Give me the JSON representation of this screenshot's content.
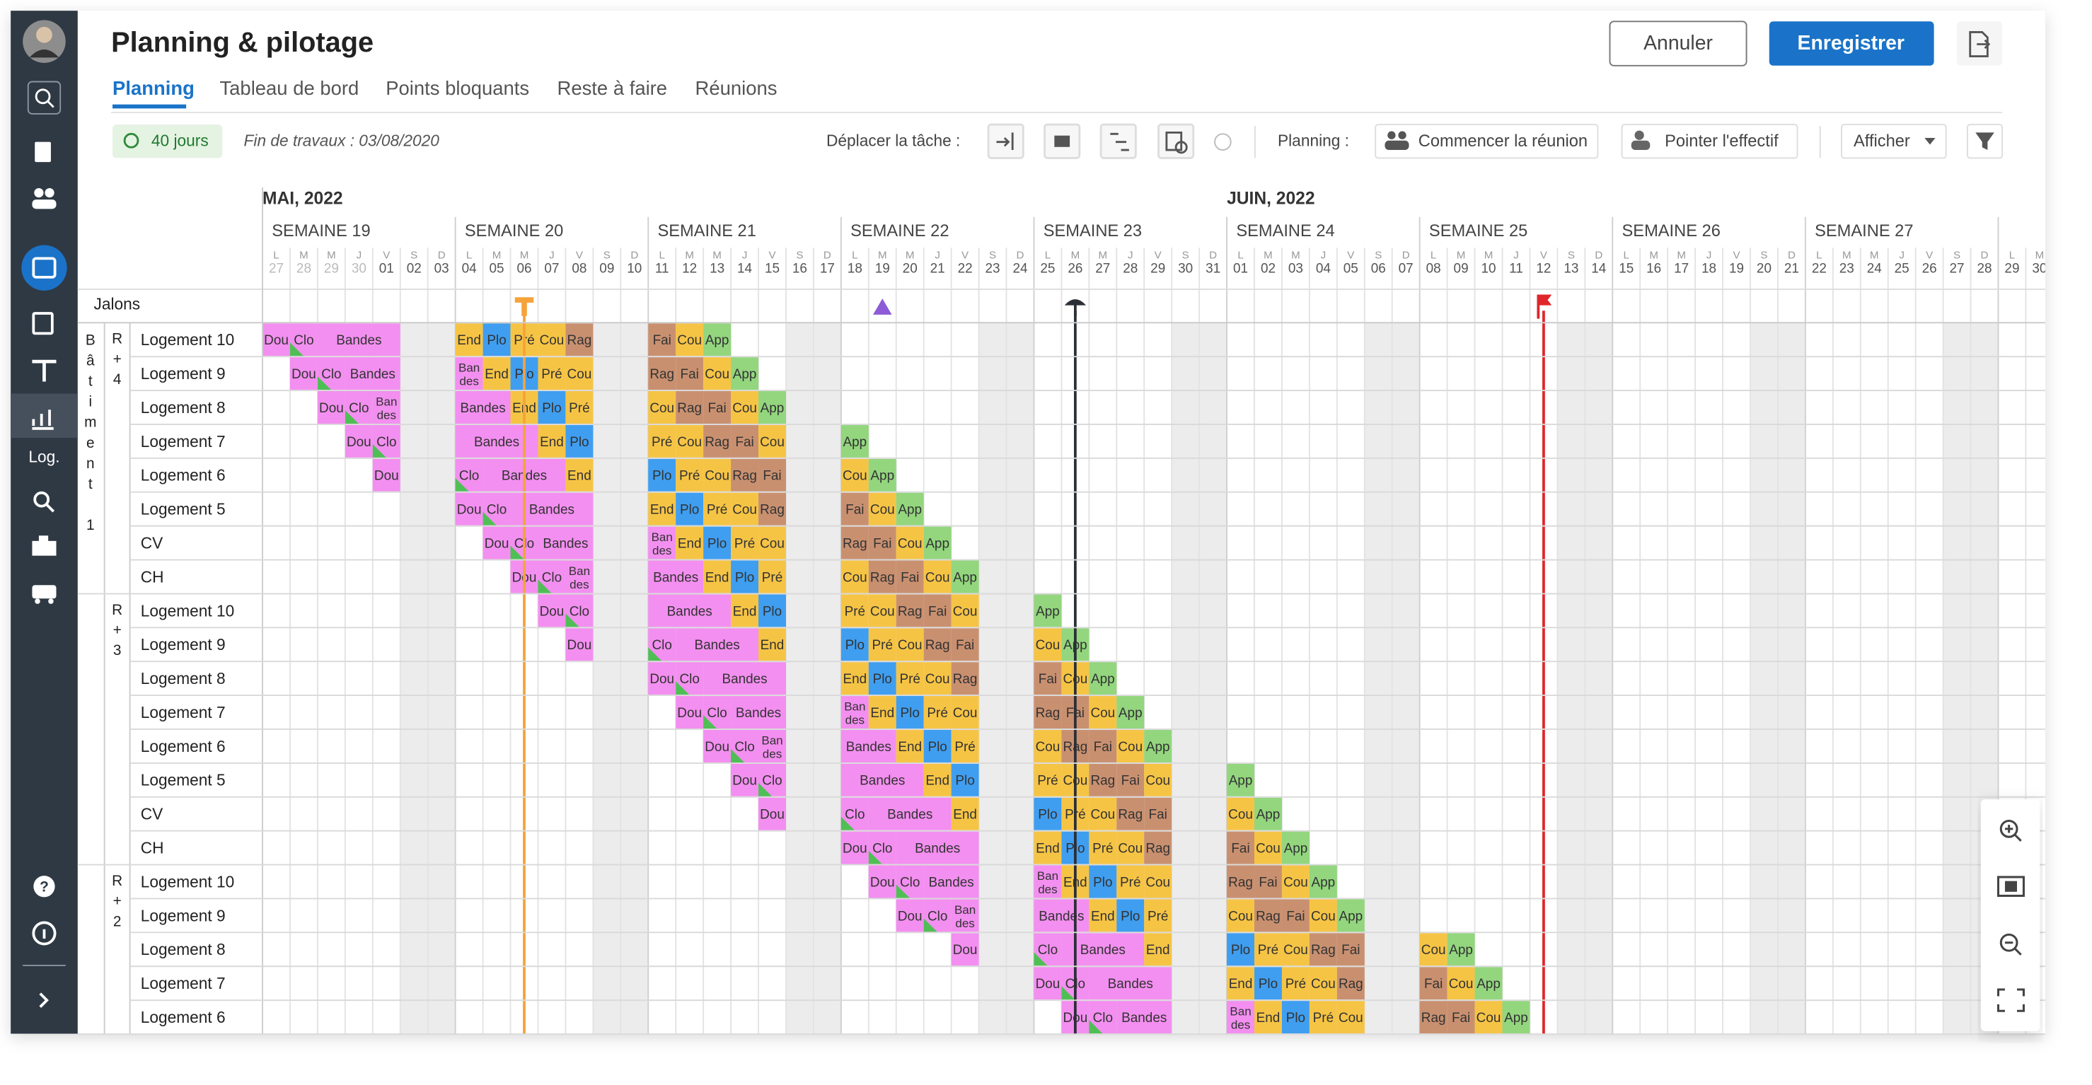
{
  "header": {
    "title": "Planning & pilotage",
    "tabs": [
      "Planning",
      "Tableau de bord",
      "Points bloquants",
      "Reste à faire",
      "Réunions"
    ]
  },
  "buttons": {
    "cancel": "Annuler",
    "save": "Enregistrer"
  },
  "toolbar": {
    "duration": "40 jours",
    "end_date": "Fin de travaux : 03/08/2020",
    "move_task": "Déplacer la tâche :",
    "planning": "Planning :",
    "start_meeting": "Commencer la réunion",
    "staff": "Pointer l'effectif",
    "display": "Afficher"
  },
  "sidebar": {
    "log": "Log."
  },
  "calendar": {
    "months": [
      "MAI, 2022",
      "JUIN, 2022"
    ],
    "weeks": [
      "SEMAINE 19",
      "SEMAINE 20",
      "SEMAINE 21",
      "SEMAINE 22",
      "SEMAINE 23",
      "SEMAINE 24",
      "SEMAINE 25",
      "SEMAINE 26",
      "SEMAINE 27"
    ],
    "weekdays": [
      "L",
      "M",
      "M",
      "J",
      "V",
      "S",
      "D"
    ],
    "days": [
      "27",
      "28",
      "29",
      "30",
      "01",
      "02",
      "03",
      "04",
      "05",
      "06",
      "07",
      "08",
      "09",
      "10",
      "11",
      "12",
      "13",
      "14",
      "15",
      "16",
      "17",
      "18",
      "19",
      "20",
      "21",
      "22",
      "23",
      "24",
      "25",
      "26",
      "27",
      "28",
      "29",
      "30",
      "31",
      "01",
      "02",
      "03",
      "04",
      "05",
      "06",
      "07",
      "08",
      "09",
      "10",
      "11",
      "12",
      "13",
      "14",
      "15",
      "16",
      "17",
      "18",
      "19",
      "20",
      "21",
      "22",
      "23",
      "24",
      "25",
      "26",
      "27",
      "28",
      "29",
      "30"
    ]
  },
  "milestones_label": "Jalons",
  "colors": {
    "Dou": "#f38ff0",
    "Clo": "#f38ff0",
    "Bandes": "#f38ff0",
    "End": "#f6c445",
    "Pré": "#f6c445",
    "Cou": "#f6c445",
    "Plo": "#3f9ef0",
    "Rag": "#c99070",
    "Fai": "#c99070",
    "App": "#93d67e"
  },
  "building": "Bâtiment 1",
  "floors": [
    {
      "label": "R+4",
      "rows": [
        {
          "name": "Logement 10",
          "cells": [
            "Dou",
            "Clo",
            "Bandes",
            "Bandes",
            "Bandes",
            null,
            null,
            "End",
            "Plo",
            "Pré",
            "Cou",
            "Rag",
            null,
            null,
            "Fai",
            "Cou",
            "App"
          ]
        },
        {
          "name": "Logement 9",
          "cells": [
            null,
            "Dou",
            "Clo",
            "Bandes",
            "Bandes",
            null,
            null,
            "Bandes",
            "End",
            "Plo",
            "Pré",
            "Cou",
            null,
            null,
            "Rag",
            "Fai",
            "Cou",
            "App"
          ]
        },
        {
          "name": "Logement 8",
          "cells": [
            null,
            null,
            "Dou",
            "Clo",
            "Bandes",
            null,
            null,
            "Bandes",
            "Bandes",
            "End",
            "Plo",
            "Pré",
            null,
            null,
            "Cou",
            "Rag",
            "Fai",
            "Cou",
            "App"
          ]
        },
        {
          "name": "Logement 7",
          "cells": [
            null,
            null,
            null,
            "Dou",
            "Clo",
            null,
            null,
            "Bandes",
            "Bandes",
            "Bandes",
            "End",
            "Plo",
            null,
            null,
            "Pré",
            "Cou",
            "Rag",
            "Fai",
            "Cou",
            null,
            null,
            "App"
          ]
        },
        {
          "name": "Logement 6",
          "cells": [
            null,
            null,
            null,
            null,
            "Dou",
            null,
            null,
            "Clo",
            "Bandes",
            "Bandes",
            "Bandes",
            "End",
            null,
            null,
            "Plo",
            "Pré",
            "Cou",
            "Rag",
            "Fai",
            null,
            null,
            "Cou",
            "App"
          ]
        },
        {
          "name": "Logement 5",
          "cells": [
            null,
            null,
            null,
            null,
            null,
            null,
            null,
            "Dou",
            "Clo",
            "Bandes",
            "Bandes",
            "Bandes",
            null,
            null,
            "End",
            "Plo",
            "Pré",
            "Cou",
            "Rag",
            null,
            null,
            "Fai",
            "Cou",
            "App"
          ]
        },
        {
          "name": "CV",
          "cells": [
            null,
            null,
            null,
            null,
            null,
            null,
            null,
            null,
            "Dou",
            "Clo",
            "Bandes",
            "Bandes",
            null,
            null,
            "Bandes",
            "End",
            "Plo",
            "Pré",
            "Cou",
            null,
            null,
            "Rag",
            "Fai",
            "Cou",
            "App"
          ]
        },
        {
          "name": "CH",
          "cells": [
            null,
            null,
            null,
            null,
            null,
            null,
            null,
            null,
            null,
            "Dou",
            "Clo",
            "Bandes",
            null,
            null,
            "Bandes",
            "Bandes",
            "End",
            "Plo",
            "Pré",
            null,
            null,
            "Cou",
            "Rag",
            "Fai",
            "Cou",
            "App"
          ]
        }
      ]
    },
    {
      "label": "R+3",
      "rows": [
        {
          "name": "Logement 10",
          "cells": [
            null,
            null,
            null,
            null,
            null,
            null,
            null,
            null,
            null,
            null,
            "Dou",
            "Clo",
            null,
            null,
            "Bandes",
            "Bandes",
            "Bandes",
            "End",
            "Plo",
            null,
            null,
            "Pré",
            "Cou",
            "Rag",
            "Fai",
            "Cou",
            null,
            null,
            "App"
          ]
        },
        {
          "name": "Logement 9",
          "cells": [
            null,
            null,
            null,
            null,
            null,
            null,
            null,
            null,
            null,
            null,
            null,
            "Dou",
            null,
            null,
            "Clo",
            "Bandes",
            "Bandes",
            "Bandes",
            "End",
            null,
            null,
            "Plo",
            "Pré",
            "Cou",
            "Rag",
            "Fai",
            null,
            null,
            "Cou",
            "App"
          ]
        },
        {
          "name": "Logement 8",
          "cells": [
            null,
            null,
            null,
            null,
            null,
            null,
            null,
            null,
            null,
            null,
            null,
            null,
            null,
            null,
            "Dou",
            "Clo",
            "Bandes",
            "Bandes",
            "Bandes",
            null,
            null,
            "End",
            "Plo",
            "Pré",
            "Cou",
            "Rag",
            null,
            null,
            "Fai",
            "Cou",
            "App"
          ]
        },
        {
          "name": "Logement 7",
          "cells": [
            null,
            null,
            null,
            null,
            null,
            null,
            null,
            null,
            null,
            null,
            null,
            null,
            null,
            null,
            null,
            "Dou",
            "Clo",
            "Bandes",
            "Bandes",
            null,
            null,
            "Bandes",
            "End",
            "Plo",
            "Pré",
            "Cou",
            null,
            null,
            "Rag",
            "Fai",
            "Cou",
            "App"
          ]
        },
        {
          "name": "Logement 6",
          "cells": [
            null,
            null,
            null,
            null,
            null,
            null,
            null,
            null,
            null,
            null,
            null,
            null,
            null,
            null,
            null,
            null,
            "Dou",
            "Clo",
            "Bandes",
            null,
            null,
            "Bandes",
            "Bandes",
            "End",
            "Plo",
            "Pré",
            null,
            null,
            "Cou",
            "Rag",
            "Fai",
            "Cou",
            "App"
          ]
        },
        {
          "name": "Logement 5",
          "cells": [
            null,
            null,
            null,
            null,
            null,
            null,
            null,
            null,
            null,
            null,
            null,
            null,
            null,
            null,
            null,
            null,
            null,
            "Dou",
            "Clo",
            null,
            null,
            "Bandes",
            "Bandes",
            "Bandes",
            "End",
            "Plo",
            null,
            null,
            "Pré",
            "Cou",
            "Rag",
            "Fai",
            "Cou",
            null,
            null,
            "App"
          ]
        },
        {
          "name": "CV",
          "cells": [
            null,
            null,
            null,
            null,
            null,
            null,
            null,
            null,
            null,
            null,
            null,
            null,
            null,
            null,
            null,
            null,
            null,
            null,
            "Dou",
            null,
            null,
            "Clo",
            "Bandes",
            "Bandes",
            "Bandes",
            "End",
            null,
            null,
            "Plo",
            "Pré",
            "Cou",
            "Rag",
            "Fai",
            null,
            null,
            "Cou",
            "App"
          ]
        },
        {
          "name": "CH",
          "cells": [
            null,
            null,
            null,
            null,
            null,
            null,
            null,
            null,
            null,
            null,
            null,
            null,
            null,
            null,
            null,
            null,
            null,
            null,
            null,
            null,
            null,
            "Dou",
            "Clo",
            "Bandes",
            "Bandes",
            "Bandes",
            null,
            null,
            "End",
            "Plo",
            "Pré",
            "Cou",
            "Rag",
            null,
            null,
            "Fai",
            "Cou",
            "App"
          ]
        }
      ]
    },
    {
      "label": "R+2",
      "rows": [
        {
          "name": "Logement 10",
          "cells": [
            null,
            null,
            null,
            null,
            null,
            null,
            null,
            null,
            null,
            null,
            null,
            null,
            null,
            null,
            null,
            null,
            null,
            null,
            null,
            null,
            null,
            null,
            "Dou",
            "Clo",
            "Bandes",
            "Bandes",
            null,
            null,
            "Bandes",
            "End",
            "Plo",
            "Pré",
            "Cou",
            null,
            null,
            "Rag",
            "Fai",
            "Cou",
            "App"
          ]
        },
        {
          "name": "Logement 9",
          "cells": [
            null,
            null,
            null,
            null,
            null,
            null,
            null,
            null,
            null,
            null,
            null,
            null,
            null,
            null,
            null,
            null,
            null,
            null,
            null,
            null,
            null,
            null,
            null,
            "Dou",
            "Clo",
            "Bandes",
            null,
            null,
            "Bandes",
            "Bandes",
            "End",
            "Plo",
            "Pré",
            null,
            null,
            "Cou",
            "Rag",
            "Fai",
            "Cou",
            "App"
          ]
        },
        {
          "name": "Logement 8",
          "cells": [
            null,
            null,
            null,
            null,
            null,
            null,
            null,
            null,
            null,
            null,
            null,
            null,
            null,
            null,
            null,
            null,
            null,
            null,
            null,
            null,
            null,
            null,
            null,
            null,
            null,
            "Dou",
            null,
            null,
            "Clo",
            "Bandes",
            "Bandes",
            "Bandes",
            "End",
            null,
            null,
            "Plo",
            "Pré",
            "Cou",
            "Rag",
            "Fai",
            null,
            null,
            "Cou",
            "App"
          ]
        },
        {
          "name": "Logement 7",
          "cells": [
            null,
            null,
            null,
            null,
            null,
            null,
            null,
            null,
            null,
            null,
            null,
            null,
            null,
            null,
            null,
            null,
            null,
            null,
            null,
            null,
            null,
            null,
            null,
            null,
            null,
            null,
            null,
            null,
            "Dou",
            "Clo",
            "Bandes",
            "Bandes",
            "Bandes",
            null,
            null,
            "End",
            "Plo",
            "Pré",
            "Cou",
            "Rag",
            null,
            null,
            "Fai",
            "Cou",
            "App"
          ]
        },
        {
          "name": "Logement 6",
          "cells": [
            null,
            null,
            null,
            null,
            null,
            null,
            null,
            null,
            null,
            null,
            null,
            null,
            null,
            null,
            null,
            null,
            null,
            null,
            null,
            null,
            null,
            null,
            null,
            null,
            null,
            null,
            null,
            null,
            null,
            "Dou",
            "Clo",
            "Bandes",
            "Bandes",
            null,
            null,
            "Bandes",
            "End",
            "Plo",
            "Pré",
            "Cou",
            null,
            null,
            "Rag",
            "Fai",
            "Cou",
            "App"
          ]
        }
      ]
    }
  ]
}
